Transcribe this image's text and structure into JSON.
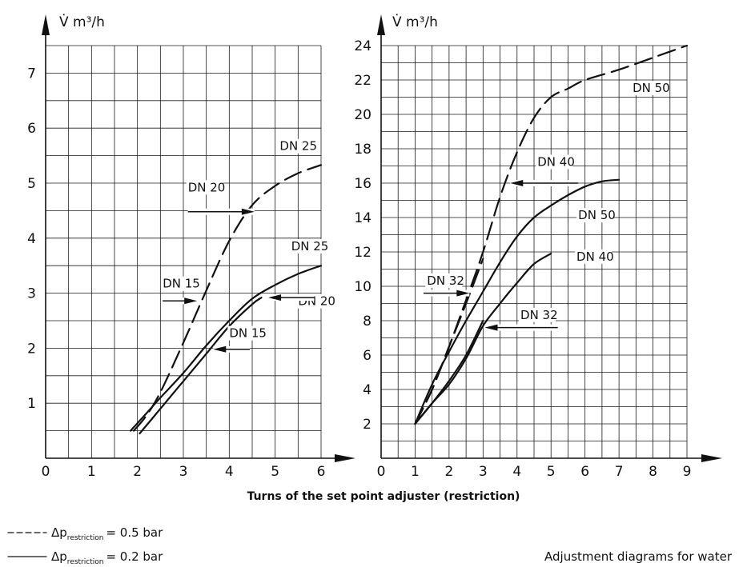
{
  "chart_data": [
    {
      "type": "line",
      "ylabel": "V̇ m³/h",
      "xlim": [
        0,
        6
      ],
      "ylim": [
        0,
        7.5
      ],
      "xticks": [
        "0",
        "1",
        "2",
        "3",
        "4",
        "5",
        "6"
      ],
      "yticks": [
        "1",
        "2",
        "3",
        "4",
        "5",
        "6",
        "7"
      ],
      "grid": true,
      "series": [
        {
          "dashed": true,
          "x": [
            1.92,
            2.2,
            2.5,
            3.0,
            3.5,
            4.0,
            4.5,
            5.0,
            5.5,
            6.0
          ],
          "y": [
            0.5,
            0.78,
            1.2,
            2.1,
            3.05,
            3.95,
            4.6,
            4.95,
            5.18,
            5.33
          ]
        },
        {
          "dashed": false,
          "x": [
            1.85,
            2.2,
            2.5,
            3.0,
            3.5,
            4.0,
            4.5,
            5.0,
            5.5,
            6.0
          ],
          "y": [
            0.5,
            0.82,
            1.1,
            1.55,
            2.05,
            2.5,
            2.9,
            3.15,
            3.35,
            3.5
          ]
        },
        {
          "dashed": false,
          "x": [
            2.05,
            2.5,
            3.0,
            3.5,
            4.0,
            4.5,
            4.7
          ],
          "y": [
            0.45,
            0.9,
            1.4,
            1.9,
            2.4,
            2.8,
            2.92
          ]
        }
      ],
      "annotations": [
        {
          "text": "DN 25",
          "x": 5.1,
          "y": 5.6,
          "arrow": false
        },
        {
          "text": "DN 20",
          "x": 3.1,
          "y": 4.85,
          "arrow": true,
          "arrow_from": [
            3.1,
            4.48
          ],
          "arrow_to": [
            4.55,
            4.48
          ]
        },
        {
          "text": "DN 25",
          "x": 5.35,
          "y": 3.78,
          "arrow": false
        },
        {
          "text": "DN 15",
          "x": 2.55,
          "y": 3.1,
          "arrow": true,
          "arrow_from": [
            2.55,
            2.86
          ],
          "arrow_to": [
            3.3,
            2.86
          ]
        },
        {
          "text": "DN 20",
          "x": 5.5,
          "y": 2.78,
          "arrow": true,
          "arrow_from": [
            5.85,
            2.92
          ],
          "arrow_to": [
            4.85,
            2.92
          ]
        },
        {
          "text": "DN 15",
          "x": 4.0,
          "y": 2.2,
          "arrow": true,
          "arrow_from": [
            4.45,
            1.98
          ],
          "arrow_to": [
            3.65,
            1.98
          ]
        }
      ]
    },
    {
      "type": "line",
      "ylabel": "V̇ m³/h",
      "xlim": [
        0,
        9
      ],
      "ylim": [
        0,
        24
      ],
      "xticks": [
        "0",
        "1",
        "2",
        "3",
        "4",
        "5",
        "6",
        "7",
        "8",
        "9"
      ],
      "yticks": [
        "2",
        "4",
        "6",
        "8",
        "10",
        "12",
        "14",
        "16",
        "18",
        "20",
        "22",
        "24"
      ],
      "grid": true,
      "series": [
        {
          "dashed": true,
          "x": [
            1.0,
            1.5,
            2.0,
            2.5,
            3.0,
            3.5,
            4.0,
            4.5,
            5.0,
            5.5,
            6.0,
            7.0,
            8.0,
            9.0
          ],
          "y": [
            2.0,
            4.0,
            6.5,
            9.2,
            12.0,
            15.2,
            17.8,
            19.8,
            21.0,
            21.5,
            22.0,
            22.6,
            23.3,
            24.0
          ]
        },
        {
          "dashed": false,
          "x": [
            1.0,
            1.5,
            2.0,
            2.5,
            3.0,
            3.5,
            4.0,
            4.5,
            5.0,
            5.5,
            6.0,
            6.5,
            7.0
          ],
          "y": [
            2.0,
            4.3,
            6.2,
            8.0,
            9.7,
            11.4,
            12.9,
            14.0,
            14.7,
            15.3,
            15.8,
            16.1,
            16.2
          ]
        },
        {
          "dashed": true,
          "x": [
            1.0,
            1.5,
            2.0,
            2.5,
            3.0
          ],
          "y": [
            2.0,
            4.0,
            6.5,
            9.0,
            11.6
          ]
        },
        {
          "dashed": false,
          "x": [
            1.0,
            1.5,
            2.0,
            2.5,
            3.0,
            3.5,
            4.0,
            4.5,
            5.0
          ],
          "y": [
            2.0,
            3.2,
            4.3,
            5.8,
            7.7,
            9.0,
            10.2,
            11.3,
            11.9
          ]
        },
        {
          "dashed": false,
          "x": [
            1.0,
            1.5,
            2.0,
            2.5,
            3.0
          ],
          "y": [
            2.0,
            3.2,
            4.5,
            6.0,
            8.0
          ]
        }
      ],
      "annotations": [
        {
          "text": "DN 50",
          "x": 7.4,
          "y": 21.3,
          "arrow": false
        },
        {
          "text": "DN 40",
          "x": 4.6,
          "y": 17.0,
          "arrow": true,
          "arrow_from": [
            5.8,
            16.0
          ],
          "arrow_to": [
            3.8,
            16.0
          ]
        },
        {
          "text": "DN 50",
          "x": 5.8,
          "y": 13.9,
          "arrow": false
        },
        {
          "text": "DN 40",
          "x": 5.75,
          "y": 11.5,
          "arrow": false
        },
        {
          "text": "DN 32",
          "x": 1.35,
          "y": 10.1,
          "arrow": true,
          "arrow_from": [
            1.25,
            9.6
          ],
          "arrow_to": [
            2.6,
            9.6
          ]
        },
        {
          "text": "DN 32",
          "x": 4.1,
          "y": 8.1,
          "arrow": true,
          "arrow_from": [
            5.2,
            7.6
          ],
          "arrow_to": [
            3.05,
            7.6
          ]
        }
      ]
    }
  ],
  "xlabel": "Turns of the set point adjuster (restriction)",
  "legend": [
    {
      "symbol": "dashed",
      "prefix": "Δp",
      "subscript": "restriction",
      "value": "= 0.5 bar"
    },
    {
      "symbol": "solid",
      "prefix": "Δp",
      "subscript": "restriction",
      "value": "= 0.2 bar"
    }
  ],
  "caption": "Adjustment diagrams for water"
}
